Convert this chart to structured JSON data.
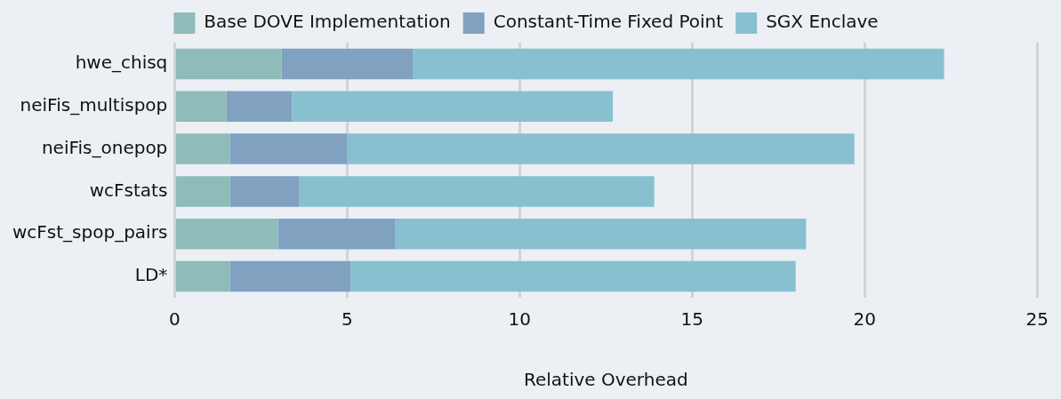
{
  "chart_data": {
    "type": "bar",
    "orientation": "horizontal",
    "stacked": true,
    "xlabel": "Relative Overhead",
    "categories": [
      "hwe_chisq",
      "neiFis_multispop",
      "neiFis_onepop",
      "wcFstats",
      "wcFst_spop_pairs",
      "LD*"
    ],
    "series": [
      {
        "name": "Base DOVE Implementation",
        "color": "#8fbcb8",
        "values": [
          3.1,
          1.5,
          1.6,
          1.6,
          3.0,
          1.6
        ]
      },
      {
        "name": "Constant-Time Fixed Point",
        "color": "#81a1c1",
        "values": [
          3.8,
          1.9,
          3.4,
          2.0,
          3.4,
          3.5
        ]
      },
      {
        "name": "SGX Enclave",
        "color": "#88c0d0",
        "values": [
          15.4,
          9.3,
          14.7,
          10.3,
          11.9,
          12.9
        ]
      }
    ],
    "xlim": [
      0,
      25
    ],
    "xticks": [
      0,
      5,
      10,
      15,
      20,
      25
    ],
    "grid": "x",
    "legend": "top"
  }
}
